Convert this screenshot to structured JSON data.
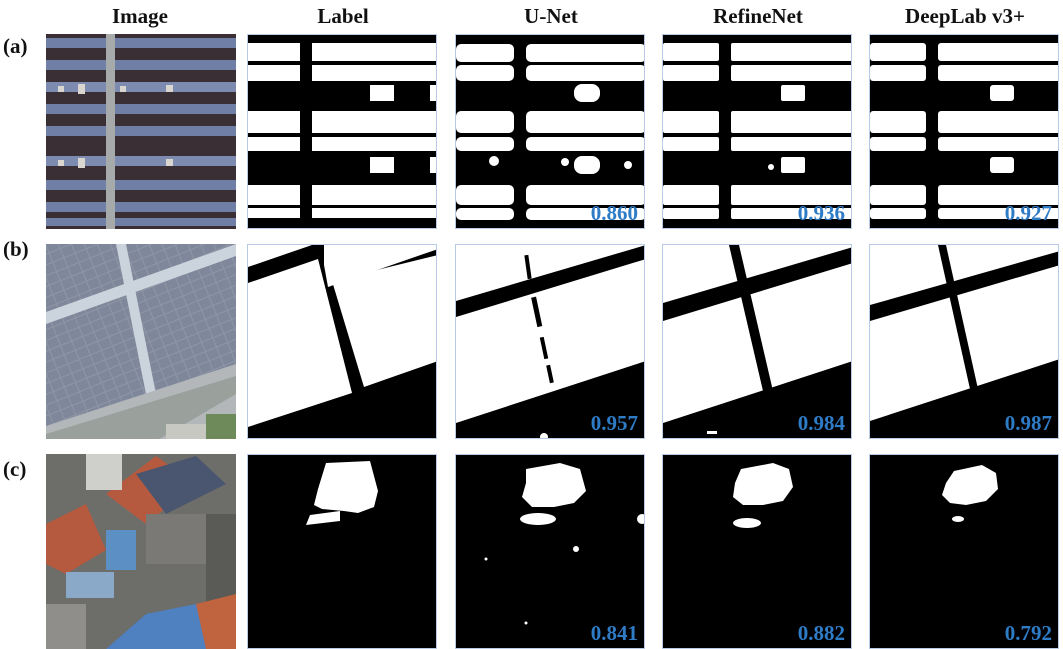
{
  "columns": [
    "Image",
    "Label",
    "U-Net",
    "RefineNet",
    "DeepLab v3+"
  ],
  "rows": [
    {
      "label": "(a)",
      "scores": [
        "0.860",
        "0.936",
        "0.927"
      ]
    },
    {
      "label": "(b)",
      "scores": [
        "0.957",
        "0.984",
        "0.987"
      ]
    },
    {
      "label": "(c)",
      "scores": [
        "0.841",
        "0.882",
        "0.792"
      ]
    }
  ],
  "colors": {
    "score": "#2e7bc6",
    "cell_border": "#b9cbe4",
    "panel_blue": "#6f7fa6",
    "roof_red": "#b65a3f"
  }
}
